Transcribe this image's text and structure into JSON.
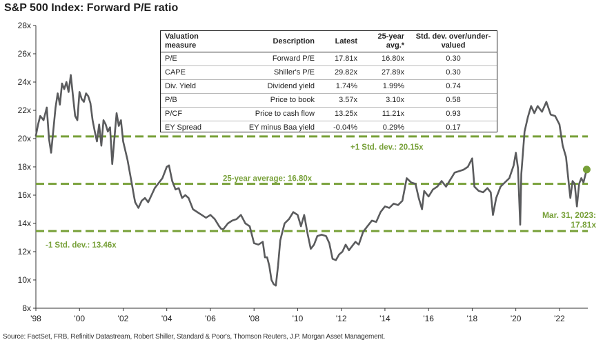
{
  "title": "S&P 500 Index: Forward P/E ratio",
  "source": "Source: FactSet, FRB, Refinitiv Datastream, Robert Shiller, Standard & Poor's, Thomson Reuters, J.P. Morgan Asset Management.",
  "table": {
    "headers": [
      "Valuation measure",
      "Description",
      "Latest",
      "25-year avg.*",
      "Std. dev. over/under-valued"
    ],
    "rows": [
      [
        "P/E",
        "Forward P/E",
        "17.81x",
        "16.80x",
        "0.30"
      ],
      [
        "CAPE",
        "Shiller's P/E",
        "29.82x",
        "27.89x",
        "0.30"
      ],
      [
        "Div. Yield",
        "Dividend yield",
        "1.74%",
        "1.99%",
        "0.74"
      ],
      [
        "P/B",
        "Price to book",
        "3.57x",
        "3.10x",
        "0.58"
      ],
      [
        "P/CF",
        "Price to cash flow",
        "13.25x",
        "11.21x",
        "0.93"
      ],
      [
        "EY Spread",
        "EY minus Baa yield",
        "-0.04%",
        "0.29%",
        "0.17"
      ]
    ]
  },
  "chart_data": {
    "type": "line",
    "title": "S&P 500 Index: Forward P/E ratio",
    "xlabel": "",
    "ylabel": "",
    "xlim": [
      1998,
      2023.3
    ],
    "ylim": [
      8,
      28
    ],
    "x_ticks": [
      "'98",
      "'00",
      "'02",
      "'04",
      "'06",
      "'08",
      "'10",
      "'12",
      "'14",
      "'16",
      "'18",
      "'20",
      "'22"
    ],
    "y_ticks": [
      "8x",
      "10x",
      "12x",
      "14x",
      "16x",
      "18x",
      "20x",
      "22x",
      "24x",
      "26x",
      "28x"
    ],
    "reference_lines": [
      {
        "label": "+1 Std. dev.: 20.15x",
        "value": 20.15
      },
      {
        "label": "25-year average: 16.80x",
        "value": 16.8
      },
      {
        "label": "-1 Std. dev.: 13.46x",
        "value": 13.46
      }
    ],
    "latest": {
      "label_line1": "Mar. 31, 2023:",
      "label_line2": "17.81x",
      "x": 2023.25,
      "y": 17.81
    },
    "series": [
      {
        "values": [
          [
            1998.0,
            20.2
          ],
          [
            1998.1,
            21.0
          ],
          [
            1998.2,
            21.6
          ],
          [
            1998.35,
            21.3
          ],
          [
            1998.5,
            22.2
          ],
          [
            1998.6,
            20.0
          ],
          [
            1998.7,
            19.0
          ],
          [
            1998.8,
            20.6
          ],
          [
            1998.9,
            22.2
          ],
          [
            1999.0,
            23.2
          ],
          [
            1999.1,
            22.4
          ],
          [
            1999.2,
            23.9
          ],
          [
            1999.3,
            23.5
          ],
          [
            1999.4,
            24.0
          ],
          [
            1999.5,
            23.3
          ],
          [
            1999.6,
            24.5
          ],
          [
            1999.7,
            23.0
          ],
          [
            1999.8,
            21.6
          ],
          [
            1999.9,
            21.3
          ],
          [
            2000.0,
            23.3
          ],
          [
            2000.1,
            22.8
          ],
          [
            2000.2,
            22.6
          ],
          [
            2000.3,
            23.2
          ],
          [
            2000.4,
            23.0
          ],
          [
            2000.5,
            22.5
          ],
          [
            2000.6,
            21.3
          ],
          [
            2000.7,
            20.5
          ],
          [
            2000.8,
            19.8
          ],
          [
            2000.9,
            21.0
          ],
          [
            2001.0,
            19.5
          ],
          [
            2001.1,
            21.3
          ],
          [
            2001.2,
            21.0
          ],
          [
            2001.3,
            20.5
          ],
          [
            2001.4,
            20.8
          ],
          [
            2001.5,
            18.2
          ],
          [
            2001.6,
            20.0
          ],
          [
            2001.7,
            21.8
          ],
          [
            2001.8,
            20.9
          ],
          [
            2001.9,
            21.3
          ],
          [
            2002.0,
            19.8
          ],
          [
            2002.2,
            18.5
          ],
          [
            2002.4,
            16.8
          ],
          [
            2002.5,
            15.9
          ],
          [
            2002.55,
            15.5
          ],
          [
            2002.7,
            15.1
          ],
          [
            2002.85,
            15.6
          ],
          [
            2003.0,
            15.8
          ],
          [
            2003.15,
            15.5
          ],
          [
            2003.3,
            16.0
          ],
          [
            2003.45,
            16.5
          ],
          [
            2003.6,
            16.8
          ],
          [
            2003.8,
            17.2
          ],
          [
            2004.0,
            18.0
          ],
          [
            2004.1,
            18.1
          ],
          [
            2004.25,
            17.0
          ],
          [
            2004.4,
            16.4
          ],
          [
            2004.55,
            16.5
          ],
          [
            2004.7,
            15.8
          ],
          [
            2004.85,
            16.0
          ],
          [
            2005.0,
            15.8
          ],
          [
            2005.2,
            15.0
          ],
          [
            2005.4,
            14.8
          ],
          [
            2005.6,
            14.6
          ],
          [
            2005.8,
            14.4
          ],
          [
            2006.0,
            14.6
          ],
          [
            2006.2,
            14.3
          ],
          [
            2006.4,
            13.8
          ],
          [
            2006.5,
            13.6
          ],
          [
            2006.6,
            13.6
          ],
          [
            2006.8,
            14.0
          ],
          [
            2007.0,
            14.2
          ],
          [
            2007.2,
            14.3
          ],
          [
            2007.4,
            14.6
          ],
          [
            2007.6,
            14.0
          ],
          [
            2007.8,
            13.8
          ],
          [
            2008.0,
            12.6
          ],
          [
            2008.2,
            12.5
          ],
          [
            2008.4,
            12.7
          ],
          [
            2008.5,
            11.6
          ],
          [
            2008.6,
            11.6
          ],
          [
            2008.7,
            11.0
          ],
          [
            2008.8,
            10.0
          ],
          [
            2008.9,
            9.7
          ],
          [
            2009.0,
            9.6
          ],
          [
            2009.1,
            11.0
          ],
          [
            2009.2,
            12.8
          ],
          [
            2009.4,
            14.0
          ],
          [
            2009.6,
            14.3
          ],
          [
            2009.8,
            14.8
          ],
          [
            2010.0,
            14.6
          ],
          [
            2010.15,
            13.8
          ],
          [
            2010.3,
            14.6
          ],
          [
            2010.45,
            13.3
          ],
          [
            2010.6,
            12.2
          ],
          [
            2010.75,
            12.5
          ],
          [
            2010.9,
            13.1
          ],
          [
            2011.1,
            13.2
          ],
          [
            2011.3,
            13.1
          ],
          [
            2011.45,
            12.6
          ],
          [
            2011.6,
            11.5
          ],
          [
            2011.75,
            11.4
          ],
          [
            2011.9,
            11.8
          ],
          [
            2012.05,
            12.0
          ],
          [
            2012.2,
            12.5
          ],
          [
            2012.35,
            12.1
          ],
          [
            2012.5,
            12.4
          ],
          [
            2012.65,
            12.7
          ],
          [
            2012.8,
            12.5
          ],
          [
            2013.0,
            13.4
          ],
          [
            2013.2,
            13.8
          ],
          [
            2013.4,
            14.2
          ],
          [
            2013.6,
            14.1
          ],
          [
            2013.8,
            14.8
          ],
          [
            2014.0,
            15.2
          ],
          [
            2014.2,
            15.1
          ],
          [
            2014.4,
            15.4
          ],
          [
            2014.6,
            15.3
          ],
          [
            2014.8,
            15.6
          ],
          [
            2015.0,
            17.2
          ],
          [
            2015.2,
            16.9
          ],
          [
            2015.4,
            16.8
          ],
          [
            2015.55,
            15.8
          ],
          [
            2015.7,
            15.0
          ],
          [
            2015.8,
            16.3
          ],
          [
            2016.0,
            15.9
          ],
          [
            2016.2,
            16.4
          ],
          [
            2016.4,
            16.6
          ],
          [
            2016.6,
            17.0
          ],
          [
            2016.8,
            16.6
          ],
          [
            2017.0,
            17.1
          ],
          [
            2017.2,
            17.6
          ],
          [
            2017.4,
            17.7
          ],
          [
            2017.6,
            17.8
          ],
          [
            2017.8,
            18.0
          ],
          [
            2018.0,
            18.6
          ],
          [
            2018.1,
            16.6
          ],
          [
            2018.3,
            16.3
          ],
          [
            2018.5,
            16.2
          ],
          [
            2018.7,
            16.5
          ],
          [
            2018.85,
            16.2
          ],
          [
            2018.95,
            14.6
          ],
          [
            2019.1,
            15.8
          ],
          [
            2019.3,
            16.6
          ],
          [
            2019.5,
            16.9
          ],
          [
            2019.7,
            17.2
          ],
          [
            2019.9,
            18.1
          ],
          [
            2020.0,
            19.0
          ],
          [
            2020.1,
            17.9
          ],
          [
            2020.2,
            13.9
          ],
          [
            2020.25,
            17.5
          ],
          [
            2020.4,
            20.5
          ],
          [
            2020.55,
            21.5
          ],
          [
            2020.7,
            22.3
          ],
          [
            2020.85,
            21.8
          ],
          [
            2021.0,
            22.3
          ],
          [
            2021.2,
            21.9
          ],
          [
            2021.4,
            22.6
          ],
          [
            2021.6,
            21.7
          ],
          [
            2021.8,
            21.6
          ],
          [
            2022.0,
            21.0
          ],
          [
            2022.15,
            19.5
          ],
          [
            2022.3,
            18.7
          ],
          [
            2022.45,
            16.5
          ],
          [
            2022.5,
            15.8
          ],
          [
            2022.6,
            17.0
          ],
          [
            2022.7,
            16.8
          ],
          [
            2022.8,
            15.2
          ],
          [
            2022.9,
            16.8
          ],
          [
            2023.0,
            17.2
          ],
          [
            2023.1,
            16.9
          ],
          [
            2023.25,
            17.81
          ]
        ]
      }
    ]
  }
}
